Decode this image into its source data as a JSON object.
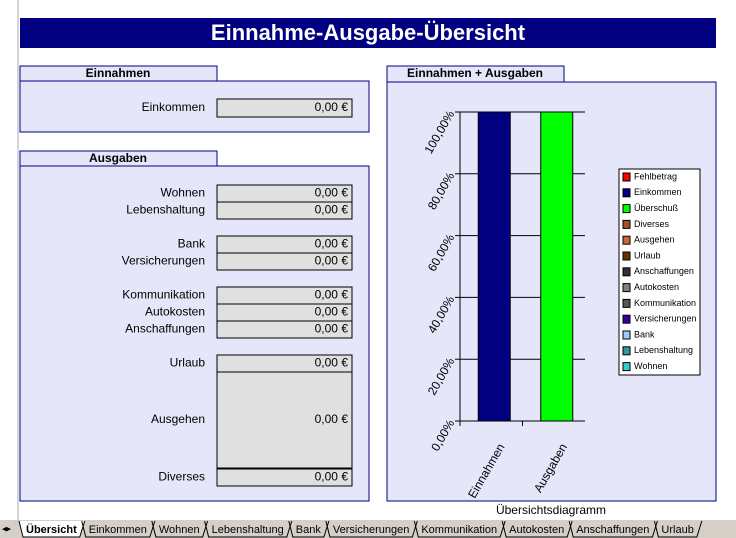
{
  "title": "Einnahme-Ausgabe-Übersicht",
  "income": {
    "header": "Einnahmen",
    "rows": [
      {
        "label": "Einkommen",
        "value": "0,00 €"
      }
    ]
  },
  "expenses": {
    "header": "Ausgaben",
    "rows": [
      {
        "label": "Wohnen",
        "value": "0,00 €"
      },
      {
        "label": "Lebenshaltung",
        "value": "0,00 €"
      },
      {
        "label": "Bank",
        "value": "0,00 €"
      },
      {
        "label": "Versicherungen",
        "value": "0,00 €"
      },
      {
        "label": "Kommunikation",
        "value": "0,00 €"
      },
      {
        "label": "Autokosten",
        "value": "0,00 €"
      },
      {
        "label": "Anschaffungen",
        "value": "0,00 €"
      },
      {
        "label": "Urlaub",
        "value": "0,00 €"
      },
      {
        "label": "Ausgehen",
        "value": "0,00 €"
      },
      {
        "label": "Diverses",
        "value": "0,00 €"
      }
    ]
  },
  "chart_panel": {
    "header": "Einnahmen + Ausgaben"
  },
  "chart_data": {
    "type": "bar",
    "xlabel": "Übersichtsdiagramm",
    "categories": [
      "Einnahmen",
      "Ausgaben"
    ],
    "values": [
      100,
      100
    ],
    "colors": [
      "#000080",
      "#00ff00"
    ],
    "ylim": [
      0,
      100
    ],
    "yticks": [
      {
        "value": 0,
        "label": "0,00%"
      },
      {
        "value": 20,
        "label": "20,00%"
      },
      {
        "value": 40,
        "label": "40,00%"
      },
      {
        "value": 60,
        "label": "60,00%"
      },
      {
        "value": 80,
        "label": "80,00%"
      },
      {
        "value": 100,
        "label": "100,00%"
      }
    ],
    "grid": true,
    "legend": [
      {
        "name": "Fehlbetrag",
        "color": "#ff0000"
      },
      {
        "name": "Einkommen",
        "color": "#000080"
      },
      {
        "name": "Überschuß",
        "color": "#00ff00"
      },
      {
        "name": "Diverses",
        "color": "#a0522d"
      },
      {
        "name": "Ausgehen",
        "color": "#cc6633"
      },
      {
        "name": "Urlaub",
        "color": "#663300"
      },
      {
        "name": "Anschaffungen",
        "color": "#333333"
      },
      {
        "name": "Autokosten",
        "color": "#808080"
      },
      {
        "name": "Kommunikation",
        "color": "#555555"
      },
      {
        "name": "Versicherungen",
        "color": "#330099"
      },
      {
        "name": "Bank",
        "color": "#99ccff"
      },
      {
        "name": "Lebenshaltung",
        "color": "#339999"
      },
      {
        "name": "Wohnen",
        "color": "#33cccc"
      }
    ]
  },
  "sheet_tabs": [
    "Übersicht",
    "Einkommen",
    "Wohnen",
    "Lebenshaltung",
    "Bank",
    "Versicherungen",
    "Kommunikation",
    "Autokosten",
    "Anschaffungen",
    "Urlaub"
  ]
}
